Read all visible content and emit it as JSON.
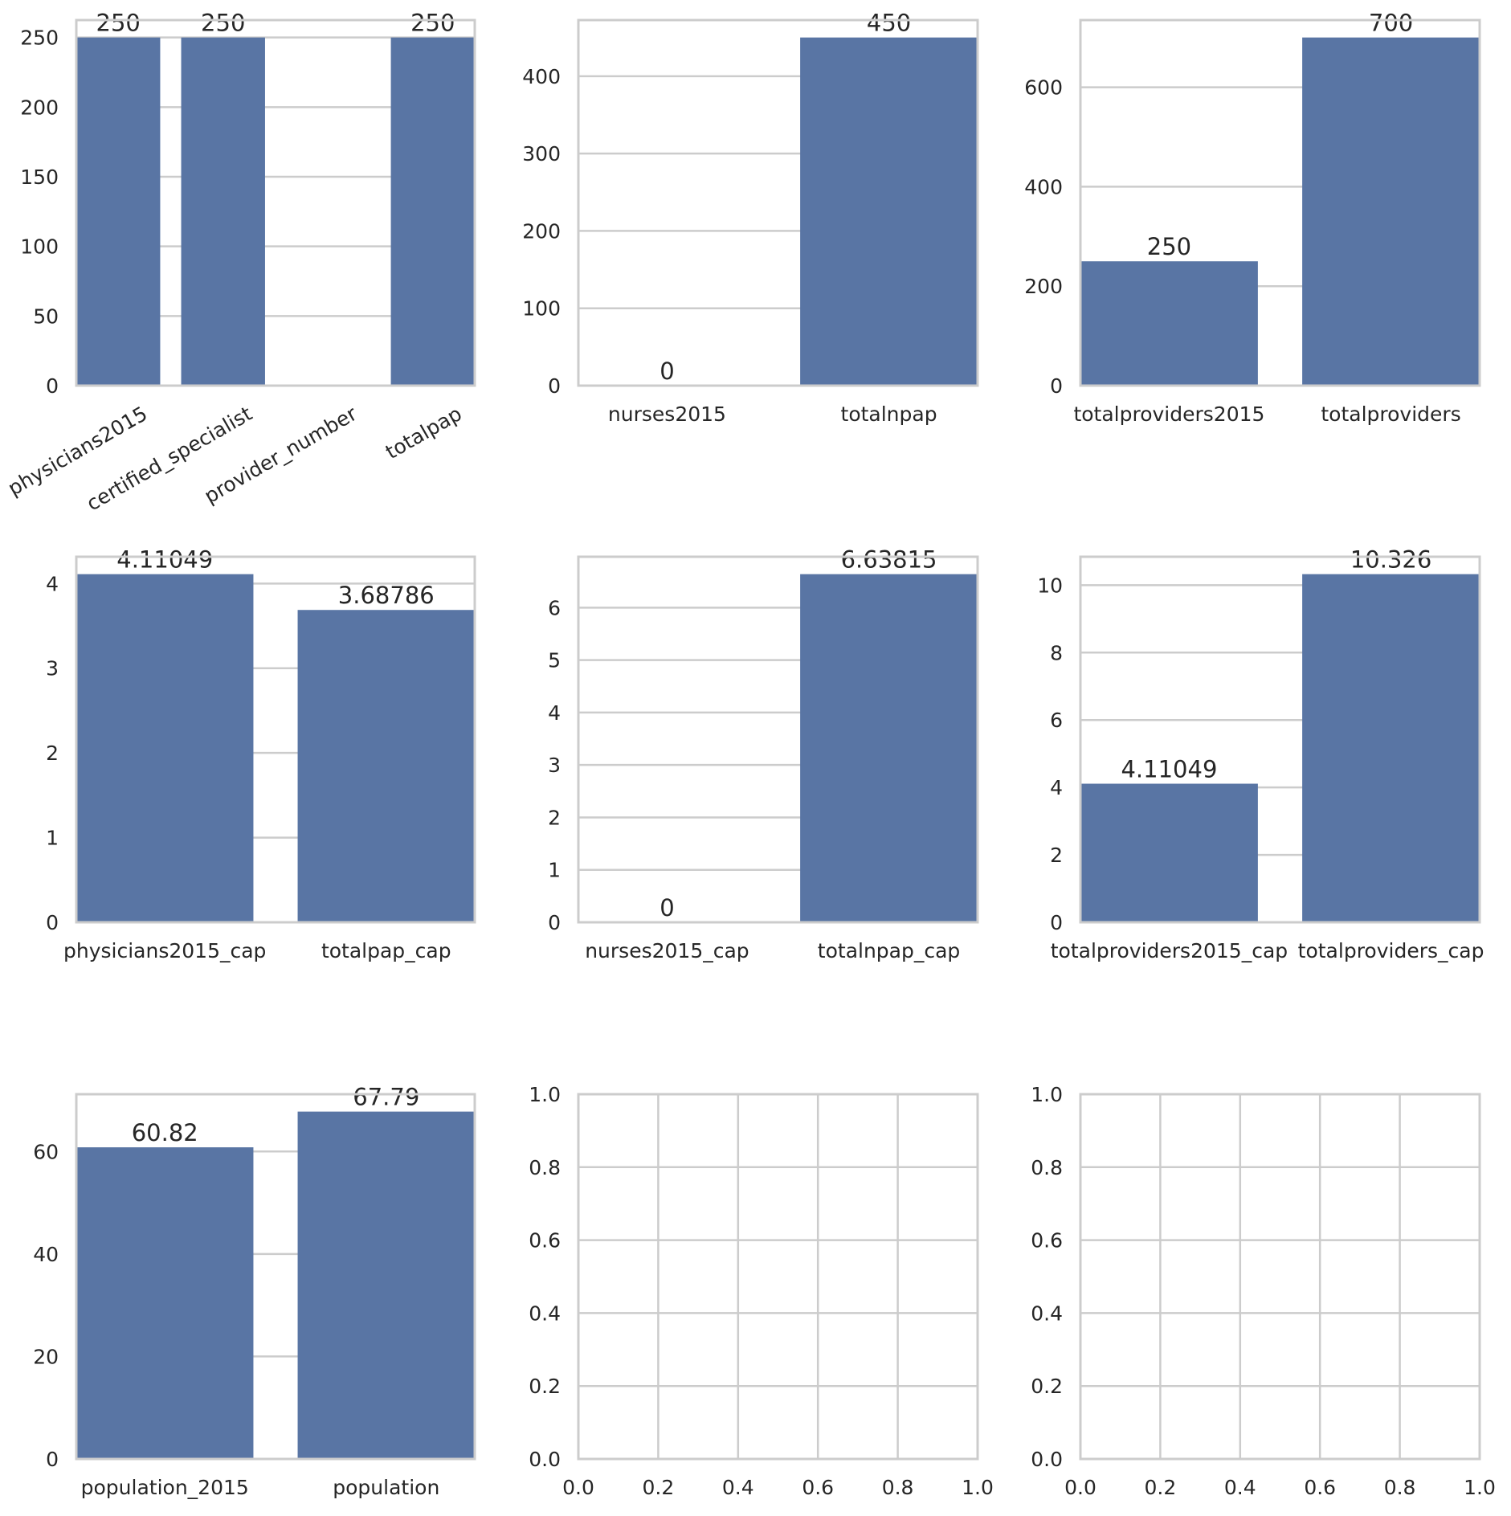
{
  "style": {
    "bar_color": "#5975a4",
    "grid_color": "#cccccc",
    "spine_color": "#cccccc",
    "text_color": "#262626",
    "background": "#ffffff"
  },
  "chart_data": [
    {
      "type": "bar",
      "categories": [
        "physicians2015",
        "certified_specialist",
        "provider_number",
        "totalpap"
      ],
      "values": [
        250,
        250,
        null,
        250
      ],
      "data_labels": [
        "250",
        "250",
        "",
        "250"
      ],
      "yticks": [
        "0",
        "50",
        "100",
        "150",
        "200",
        "250"
      ],
      "ylim": [
        0,
        262.5
      ],
      "xtick_rotation": -30,
      "grid": true
    },
    {
      "type": "bar",
      "categories": [
        "nurses2015",
        "totalnpap"
      ],
      "values": [
        0,
        450
      ],
      "data_labels": [
        "0",
        "450"
      ],
      "yticks": [
        "0",
        "100",
        "200",
        "300",
        "400"
      ],
      "ylim": [
        0,
        472.5
      ],
      "grid": true
    },
    {
      "type": "bar",
      "categories": [
        "totalproviders2015",
        "totalproviders"
      ],
      "values": [
        250,
        700
      ],
      "data_labels": [
        "250",
        "700"
      ],
      "yticks": [
        "0",
        "200",
        "400",
        "600"
      ],
      "ylim": [
        0,
        735
      ],
      "grid": true
    },
    {
      "type": "bar",
      "categories": [
        "physicians2015_cap",
        "totalpap_cap"
      ],
      "values": [
        4.11049,
        3.68786
      ],
      "data_labels": [
        "4.11049",
        "3.68786"
      ],
      "yticks": [
        "0",
        "1",
        "2",
        "3",
        "4"
      ],
      "ylim": [
        0,
        4.316
      ],
      "grid": true
    },
    {
      "type": "bar",
      "categories": [
        "nurses2015_cap",
        "totalnpap_cap"
      ],
      "values": [
        0,
        6.63815
      ],
      "data_labels": [
        "0",
        "6.63815"
      ],
      "yticks": [
        "0",
        "1",
        "2",
        "3",
        "4",
        "5",
        "6"
      ],
      "ylim": [
        0,
        6.97
      ],
      "grid": true
    },
    {
      "type": "bar",
      "categories": [
        "totalproviders2015_cap",
        "totalproviders_cap"
      ],
      "values": [
        4.11049,
        10.326
      ],
      "data_labels": [
        "4.11049",
        "10.326"
      ],
      "yticks": [
        "0",
        "2",
        "4",
        "6",
        "8",
        "10"
      ],
      "ylim": [
        0,
        10.842
      ],
      "grid": true
    },
    {
      "type": "bar",
      "categories": [
        "population_2015",
        "population"
      ],
      "values": [
        60.82,
        67.79
      ],
      "data_labels": [
        "60.82",
        "67.79"
      ],
      "yticks": [
        "0",
        "20",
        "40",
        "60"
      ],
      "ylim": [
        0,
        71.18
      ],
      "grid": true
    },
    {
      "type": "empty",
      "xticks": [
        "0.0",
        "0.2",
        "0.4",
        "0.6",
        "0.8",
        "1.0"
      ],
      "yticks": [
        "0.0",
        "0.2",
        "0.4",
        "0.6",
        "0.8",
        "1.0"
      ],
      "xlim": [
        0,
        1
      ],
      "ylim": [
        0,
        1
      ],
      "grid": true
    },
    {
      "type": "empty",
      "xticks": [
        "0.0",
        "0.2",
        "0.4",
        "0.6",
        "0.8",
        "1.0"
      ],
      "yticks": [
        "0.0",
        "0.2",
        "0.4",
        "0.6",
        "0.8",
        "1.0"
      ],
      "xlim": [
        0,
        1
      ],
      "ylim": [
        0,
        1
      ],
      "grid": true
    }
  ]
}
